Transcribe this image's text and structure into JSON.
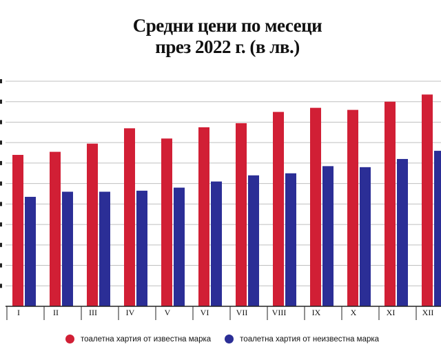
{
  "chart_data": {
    "type": "bar",
    "title_line1": "Средни цени по месеци",
    "title_line2": "през 2022 г. (в лв.)",
    "categories": [
      "I",
      "II",
      "III",
      "IV",
      "V",
      "VI",
      "VII",
      "VIII",
      "IX",
      "X",
      "XI",
      "XII"
    ],
    "series": [
      {
        "name": "тоалетна хартия от известна марка",
        "color": "#d11f35",
        "values": [
          7.4,
          7.55,
          7.95,
          8.7,
          8.2,
          8.75,
          8.95,
          9.5,
          9.7,
          9.6,
          10.0,
          10.35
        ]
      },
      {
        "name": "тоалетна хартия от неизвестна марка",
        "color": "#2b2e96",
        "values": [
          5.35,
          5.6,
          5.6,
          5.65,
          5.8,
          6.1,
          6.4,
          6.5,
          6.85,
          6.8,
          7.2,
          7.6
        ]
      }
    ],
    "ylim": [
      0,
      11
    ],
    "grid": true,
    "legend_position": "bottom"
  }
}
